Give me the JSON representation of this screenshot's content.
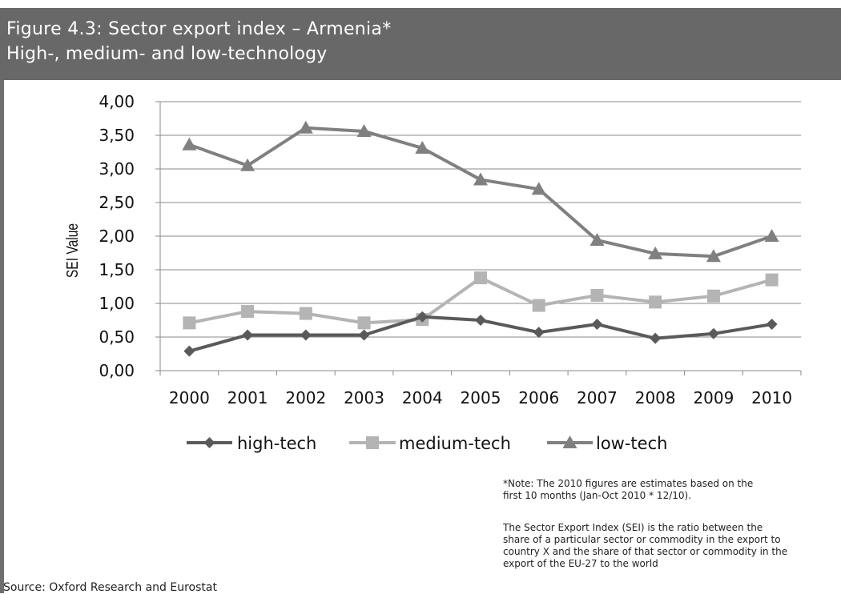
{
  "header": {
    "title": "Figure 4.3: Sector export index – Armenia*",
    "subtitle": "High-, medium- and low-technology"
  },
  "chart_data": {
    "type": "line",
    "title": "",
    "xlabel": "",
    "ylabel": "SEI Value",
    "x": [
      "2000",
      "2001",
      "2002",
      "2003",
      "2004",
      "2005",
      "2006",
      "2007",
      "2008",
      "2009",
      "2010"
    ],
    "ylim": [
      0,
      4
    ],
    "yticks": [
      "0,00",
      "0,50",
      "1,00",
      "1,50",
      "2,00",
      "2,50",
      "3,00",
      "3,50",
      "4,00"
    ],
    "grid": true,
    "legend_position": "bottom",
    "series": [
      {
        "name": "high-tech",
        "marker": "diamond",
        "color": "#5a5a5a",
        "values": [
          0.29,
          0.53,
          0.53,
          0.53,
          0.8,
          0.75,
          0.57,
          0.69,
          0.48,
          0.55,
          0.69
        ]
      },
      {
        "name": "medium-tech",
        "marker": "square",
        "color": "#b4b4b4",
        "values": [
          0.71,
          0.88,
          0.85,
          0.71,
          0.76,
          1.38,
          0.97,
          1.12,
          1.02,
          1.11,
          1.35
        ]
      },
      {
        "name": "low-tech",
        "marker": "triangle",
        "color": "#808080",
        "values": [
          3.36,
          3.05,
          3.61,
          3.56,
          3.31,
          2.84,
          2.7,
          1.94,
          1.74,
          1.7,
          2.0
        ]
      }
    ]
  },
  "notes": {
    "note": "*Note: The 2010 figures are estimates based on the\nfirst 10 months (Jan-Oct 2010 * 12/10).",
    "definition": "The Sector Export Index (SEI) is the ratio between the\nshare of a particular sector or commodity in the export to\ncountry X and the share of that sector or commodity in the\nexport of the EU-27 to the world",
    "source": "Source: Oxford Research and Eurostat"
  }
}
